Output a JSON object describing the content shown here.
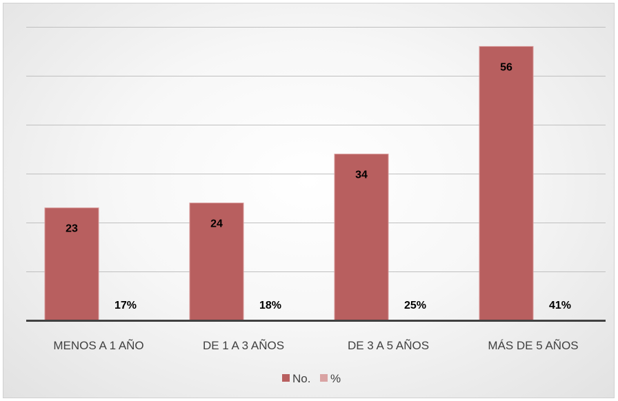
{
  "chart_data": {
    "type": "bar",
    "categories": [
      "MENOS A 1 AÑO",
      "DE 1 A 3 AÑOS",
      "DE 3 A 5 AÑOS",
      "MÁS DE 5 AÑOS"
    ],
    "series": [
      {
        "name": "No.",
        "values": [
          23,
          24,
          34,
          56
        ],
        "labels": [
          "23",
          "24",
          "34",
          "56"
        ],
        "color": "#b85f5f"
      },
      {
        "name": "%",
        "values": [
          17,
          18,
          25,
          41
        ],
        "labels": [
          "17%",
          "18%",
          "25%",
          "41%"
        ],
        "color": "#d9a3a3"
      }
    ],
    "ylim": [
      0,
      60
    ],
    "grid": true,
    "legend": "bottom",
    "title": "",
    "xlabel": "",
    "ylabel": ""
  }
}
